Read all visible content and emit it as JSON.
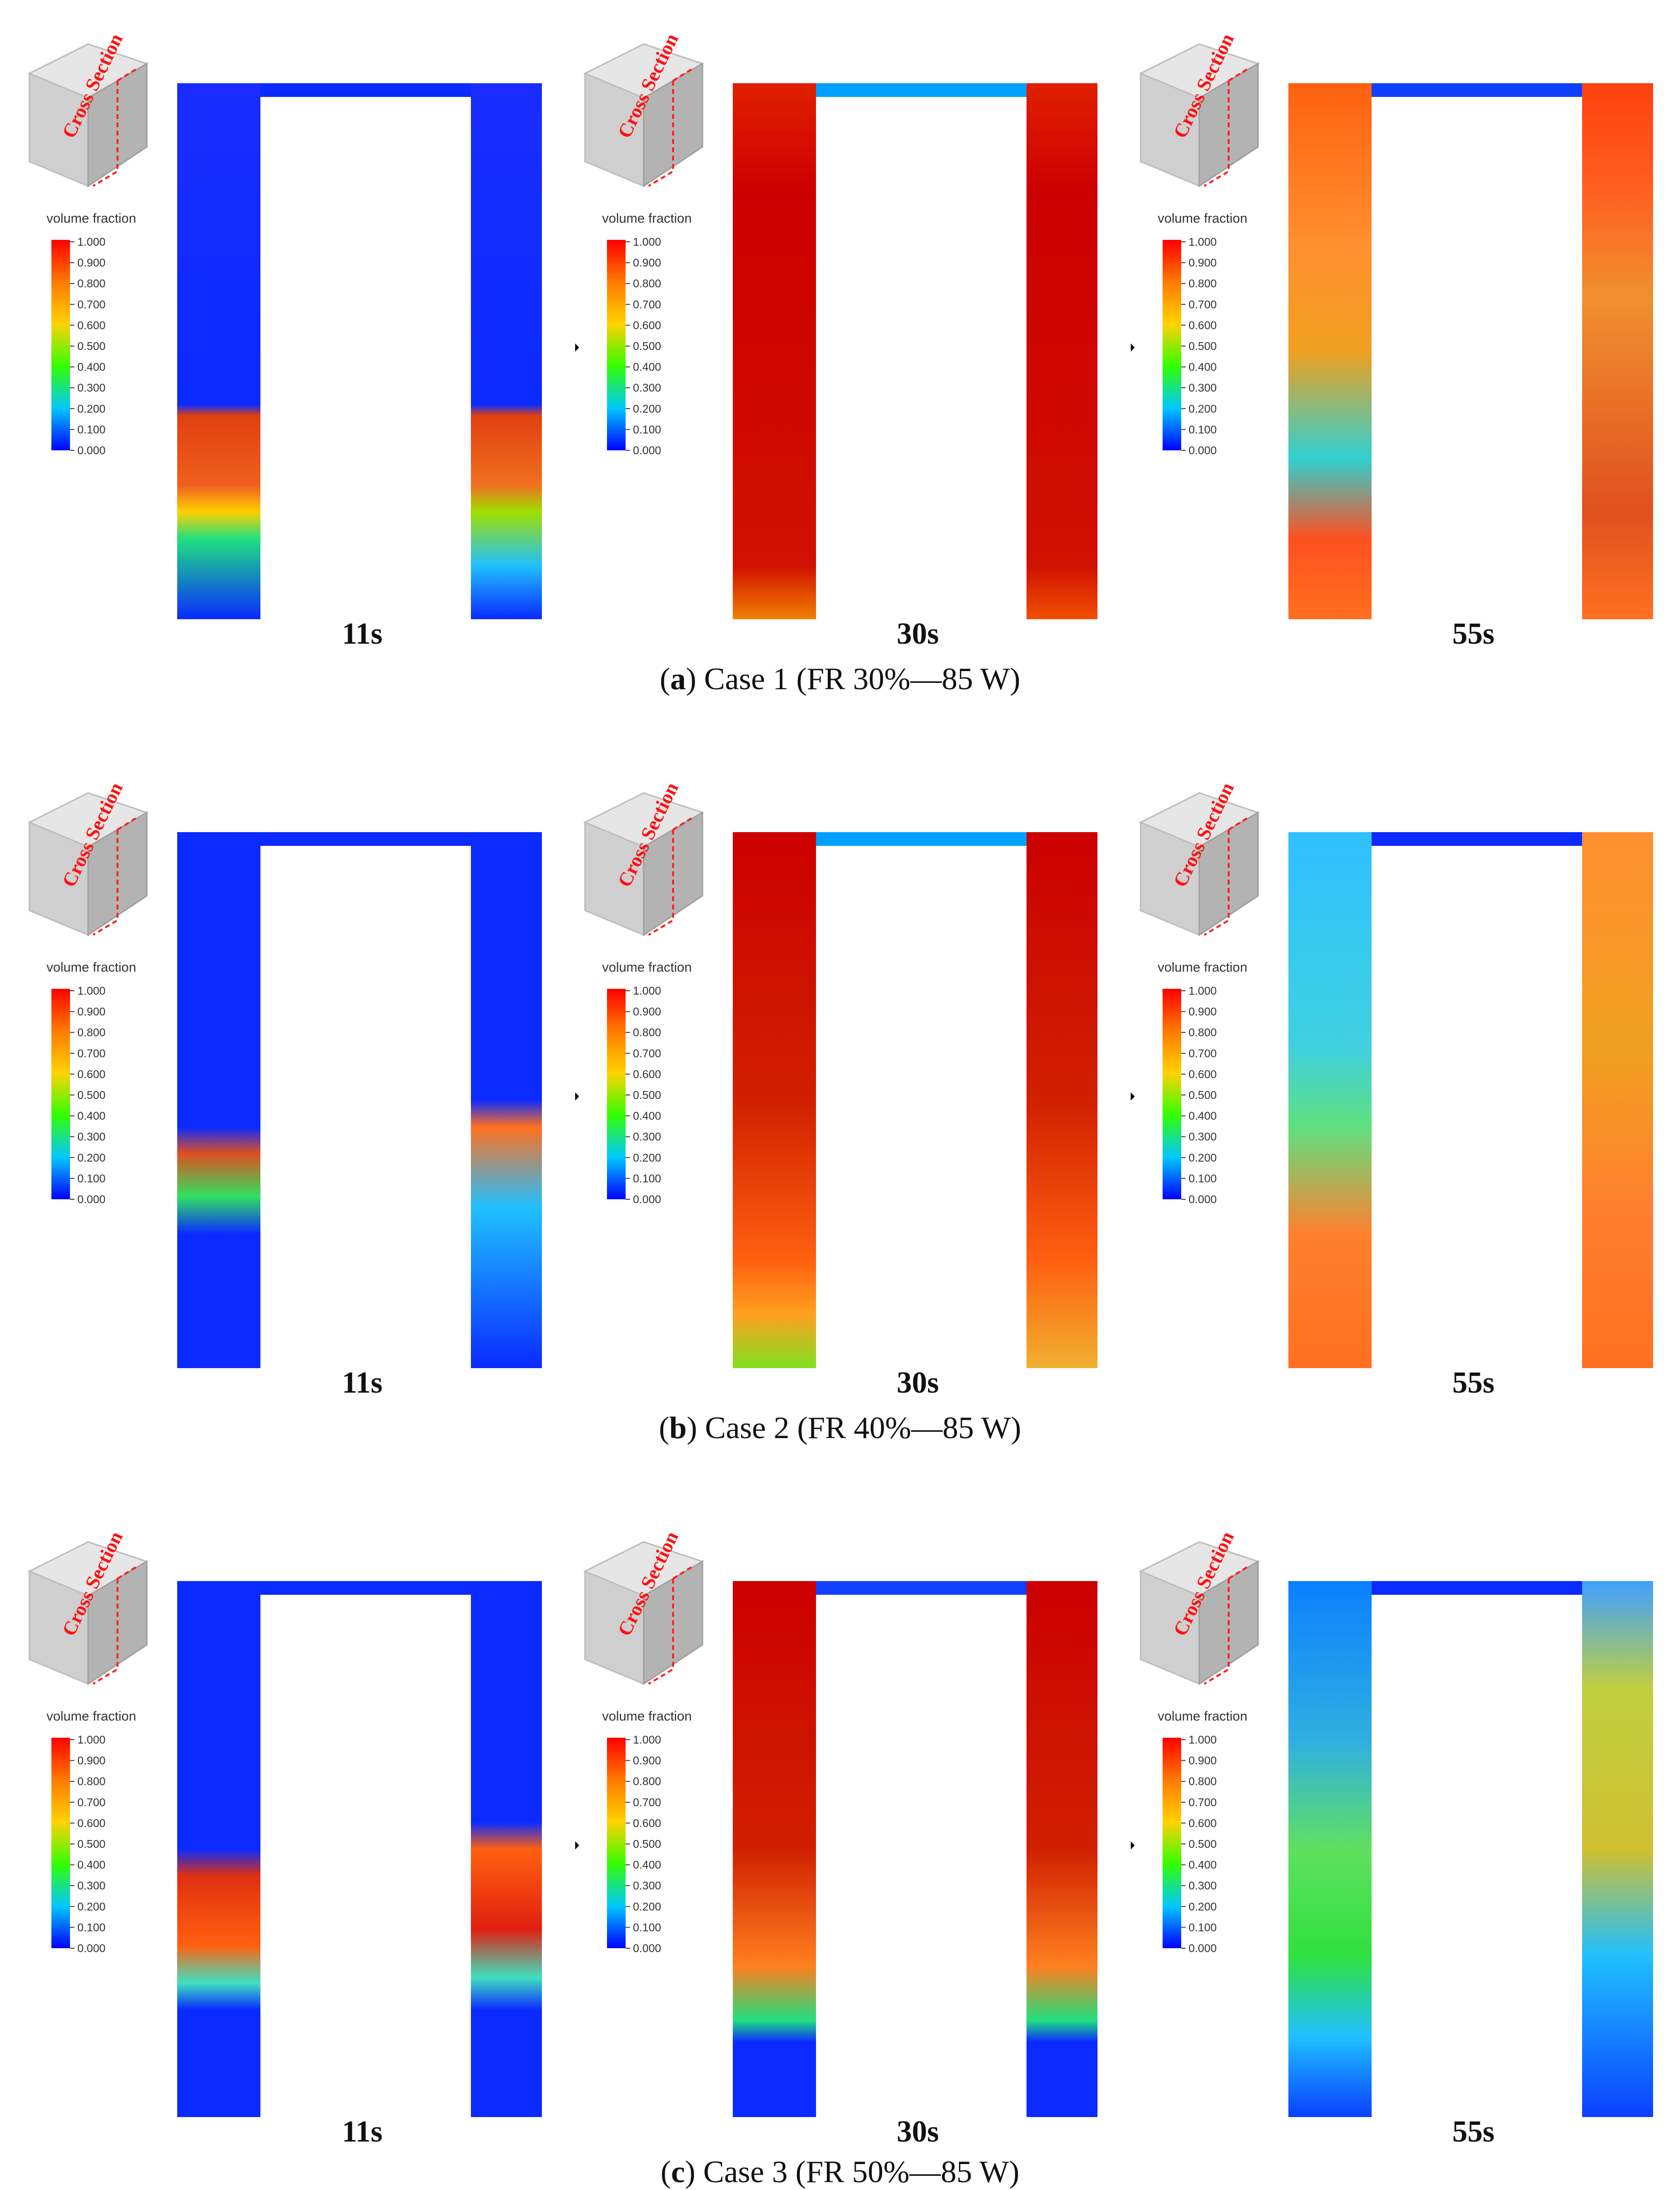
{
  "legend": {
    "title": "volume fraction",
    "ticks": [
      "1.000",
      "0.900",
      "0.800",
      "0.700",
      "0.600",
      "0.500",
      "0.400",
      "0.300",
      "0.200",
      "0.100",
      "0.000"
    ],
    "colors": [
      "#ff0000",
      "#ff7a00",
      "#ffd200",
      "#32ff00",
      "#00c8ff",
      "#0000ff"
    ]
  },
  "inset_label": "Cross Section",
  "arrow_icon": "right-arrow-icon",
  "cases": [
    {
      "paren": "a",
      "caption_rest": " Case 1 (FR 30%—85 W)",
      "frames": [
        {
          "time": "11s",
          "left": [
            [
              "#1a2cff",
              0
            ],
            [
              "#0a2aff",
              0.6
            ],
            [
              "#e04010",
              0.62
            ],
            [
              "#f06020",
              0.75
            ],
            [
              "#ffd000",
              0.8
            ],
            [
              "#20e080",
              0.85
            ],
            [
              "#0a2aff",
              1
            ]
          ],
          "right": [
            [
              "#1a2cff",
              0
            ],
            [
              "#0a2aff",
              0.6
            ],
            [
              "#e04010",
              0.62
            ],
            [
              "#f07020",
              0.75
            ],
            [
              "#a0e000",
              0.8
            ],
            [
              "#20c0ff",
              0.9
            ],
            [
              "#0a2aff",
              1
            ]
          ],
          "top": "#0a2aff"
        },
        {
          "time": "30s",
          "left": [
            [
              "#e02000",
              0
            ],
            [
              "#cc0000",
              0.2
            ],
            [
              "#d01000",
              0.9
            ],
            [
              "#f08000",
              1
            ]
          ],
          "right": [
            [
              "#e02000",
              0
            ],
            [
              "#cc0000",
              0.2
            ],
            [
              "#d01000",
              0.9
            ],
            [
              "#f05000",
              1
            ]
          ],
          "top": "#00a0ff"
        },
        {
          "time": "55s",
          "left": [
            [
              "#ff6010",
              0
            ],
            [
              "#ff9030",
              0.3
            ],
            [
              "#f0a020",
              0.5
            ],
            [
              "#30d0d0",
              0.7
            ],
            [
              "#ff5020",
              0.85
            ],
            [
              "#ff7020",
              1
            ]
          ],
          "right": [
            [
              "#ff4010",
              0
            ],
            [
              "#ff6020",
              0.2
            ],
            [
              "#f09030",
              0.4
            ],
            [
              "#e05020",
              0.8
            ],
            [
              "#ff7020",
              1
            ]
          ],
          "top": "#1040ff"
        }
      ]
    },
    {
      "paren": "b",
      "caption_rest": " Case 2 (FR 40%—85 W)",
      "frames": [
        {
          "time": "11s",
          "left": [
            [
              "#0a2aff",
              0
            ],
            [
              "#0a2aff",
              0.55
            ],
            [
              "#e05020",
              0.6
            ],
            [
              "#30e060",
              0.68
            ],
            [
              "#0a2aff",
              0.75
            ],
            [
              "#0a2aff",
              1
            ]
          ],
          "right": [
            [
              "#0a2aff",
              0
            ],
            [
              "#0a2aff",
              0.5
            ],
            [
              "#ff7020",
              0.55
            ],
            [
              "#20c0ff",
              0.7
            ],
            [
              "#0a2aff",
              1
            ]
          ],
          "top": "#0a2aff"
        },
        {
          "time": "30s",
          "left": [
            [
              "#cc0000",
              0
            ],
            [
              "#d02000",
              0.5
            ],
            [
              "#ff6010",
              0.8
            ],
            [
              "#ffa020",
              0.9
            ],
            [
              "#80e020",
              1
            ]
          ],
          "right": [
            [
              "#cc0000",
              0
            ],
            [
              "#d02000",
              0.5
            ],
            [
              "#ff6010",
              0.8
            ],
            [
              "#f0b030",
              1
            ]
          ],
          "top": "#00a0ff"
        },
        {
          "time": "55s",
          "left": [
            [
              "#30c0ff",
              0
            ],
            [
              "#40d0e0",
              0.4
            ],
            [
              "#60e080",
              0.55
            ],
            [
              "#ff8030",
              0.75
            ],
            [
              "#ff7020",
              1
            ]
          ],
          "right": [
            [
              "#ff9030",
              0
            ],
            [
              "#f0a020",
              0.4
            ],
            [
              "#ff8030",
              0.7
            ],
            [
              "#ff7020",
              1
            ]
          ],
          "top": "#0a2aff"
        }
      ]
    },
    {
      "paren": "c",
      "caption_rest": " Case 3 (FR 50%—85 W)",
      "frames": [
        {
          "time": "11s",
          "left": [
            [
              "#0a2aff",
              0
            ],
            [
              "#0a2aff",
              0.5
            ],
            [
              "#e03010",
              0.55
            ],
            [
              "#ff6010",
              0.68
            ],
            [
              "#40e0c0",
              0.75
            ],
            [
              "#0a2aff",
              0.8
            ],
            [
              "#0a2aff",
              1
            ]
          ],
          "right": [
            [
              "#0a2aff",
              0
            ],
            [
              "#0a2aff",
              0.45
            ],
            [
              "#ff6010",
              0.5
            ],
            [
              "#e02010",
              0.65
            ],
            [
              "#40e0c0",
              0.74
            ],
            [
              "#0a2aff",
              0.8
            ],
            [
              "#0a2aff",
              1
            ]
          ],
          "top": "#0a2aff"
        },
        {
          "time": "30s",
          "left": [
            [
              "#cc0000",
              0
            ],
            [
              "#d02000",
              0.5
            ],
            [
              "#ff8020",
              0.72
            ],
            [
              "#20e080",
              0.82
            ],
            [
              "#0a2aff",
              0.86
            ],
            [
              "#0a2aff",
              1
            ]
          ],
          "right": [
            [
              "#cc0000",
              0
            ],
            [
              "#d02000",
              0.5
            ],
            [
              "#ff8020",
              0.72
            ],
            [
              "#20e080",
              0.82
            ],
            [
              "#0a2aff",
              0.86
            ],
            [
              "#0a2aff",
              1
            ]
          ],
          "top": "#1040ff"
        },
        {
          "time": "55s",
          "left": [
            [
              "#0a80ff",
              0
            ],
            [
              "#30b0e0",
              0.3
            ],
            [
              "#60e060",
              0.5
            ],
            [
              "#30e040",
              0.7
            ],
            [
              "#20c0ff",
              0.85
            ],
            [
              "#0a40ff",
              1
            ]
          ],
          "right": [
            [
              "#40a0ff",
              0
            ],
            [
              "#c0d040",
              0.2
            ],
            [
              "#d0c030",
              0.5
            ],
            [
              "#20c0ff",
              0.7
            ],
            [
              "#0a40ff",
              1
            ]
          ],
          "top": "#0a2aff"
        }
      ]
    }
  ]
}
